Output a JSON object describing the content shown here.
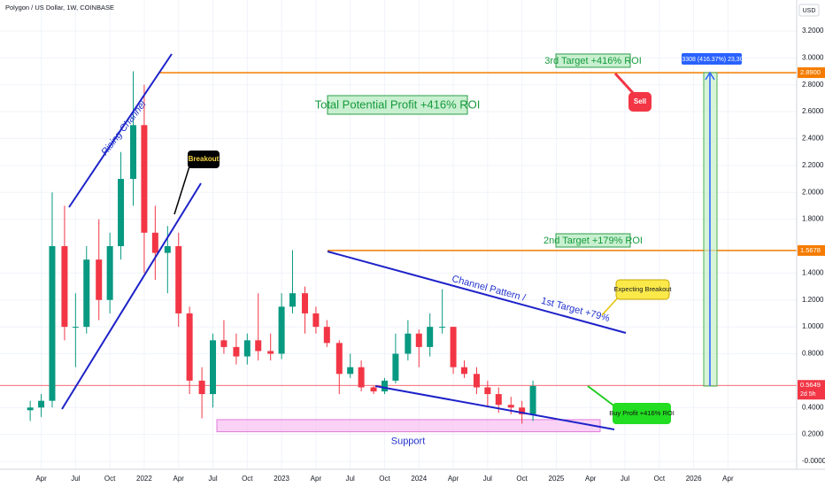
{
  "chart_data": {
    "type": "candlestick",
    "title": "Polygon / US Dollar, 1W, COINBASE",
    "currency": "USD",
    "countdown": "2d 5h",
    "up_color": "#089981",
    "down_color": "#f23645",
    "grid": true,
    "xlim": [
      2020.95,
      2026.75
    ],
    "xticks": [
      {
        "value": 2021.25,
        "label": "Apr"
      },
      {
        "value": 2021.5,
        "label": "Jul"
      },
      {
        "value": 2021.75,
        "label": "Oct"
      },
      {
        "value": 2022,
        "label": "2022"
      },
      {
        "value": 2022.25,
        "label": "Apr"
      },
      {
        "value": 2022.5,
        "label": "Jul"
      },
      {
        "value": 2022.75,
        "label": "Oct"
      },
      {
        "value": 2023,
        "label": "2023"
      },
      {
        "value": 2023.25,
        "label": "Apr"
      },
      {
        "value": 2023.5,
        "label": "Jul"
      },
      {
        "value": 2023.75,
        "label": "Oct"
      },
      {
        "value": 2024,
        "label": "2024"
      },
      {
        "value": 2024.25,
        "label": "Apr"
      },
      {
        "value": 2024.5,
        "label": "Jul"
      },
      {
        "value": 2024.75,
        "label": "Oct"
      },
      {
        "value": 2025,
        "label": "2025"
      },
      {
        "value": 2025.25,
        "label": "Apr"
      },
      {
        "value": 2025.5,
        "label": "Jul"
      },
      {
        "value": 2025.75,
        "label": "Oct"
      },
      {
        "value": 2026,
        "label": "2026"
      },
      {
        "value": 2026.25,
        "label": "Apr"
      }
    ],
    "ylim": [
      -0.1,
      3.3
    ],
    "yticks": [
      {
        "value": 3.2,
        "label": "3.2000"
      },
      {
        "value": 3.0,
        "label": "3.0000"
      },
      {
        "value": 2.8,
        "label": "2.8000"
      },
      {
        "value": 2.6,
        "label": "2.6000"
      },
      {
        "value": 2.4,
        "label": "2.4000"
      },
      {
        "value": 2.2,
        "label": "2.2000"
      },
      {
        "value": 2.0,
        "label": "2.0000"
      },
      {
        "value": 1.8,
        "label": "1.8000"
      },
      {
        "value": 1.4,
        "label": "1.4000"
      },
      {
        "value": 1.2,
        "label": "1.2000"
      },
      {
        "value": 1.0,
        "label": "1.0000"
      },
      {
        "value": 0.8,
        "label": "0.8000"
      },
      {
        "value": 0.4,
        "label": "0.4000"
      },
      {
        "value": 0.2,
        "label": "0.2000"
      },
      {
        "value": 0,
        "label": "-0.0000"
      }
    ],
    "candles": {
      "x": [
        2021.17,
        2021.25,
        2021.33,
        2021.42,
        2021.5,
        2021.58,
        2021.67,
        2021.75,
        2021.83,
        2021.92,
        2022.0,
        2022.08,
        2022.17,
        2022.25,
        2022.33,
        2022.42,
        2022.5,
        2022.58,
        2022.67,
        2022.75,
        2022.83,
        2022.92,
        2023.0,
        2023.08,
        2023.17,
        2023.25,
        2023.33,
        2023.42,
        2023.5,
        2023.58,
        2023.67,
        2023.75,
        2023.83,
        2023.92,
        2024.0,
        2024.08,
        2024.17,
        2024.25,
        2024.33,
        2024.42,
        2024.5,
        2024.58,
        2024.67,
        2024.75,
        2024.83
      ],
      "open": [
        0.38,
        0.4,
        0.45,
        1.6,
        1.0,
        1.0,
        1.5,
        1.2,
        1.6,
        2.1,
        2.5,
        1.7,
        1.55,
        1.6,
        1.1,
        0.6,
        0.5,
        0.9,
        0.85,
        0.78,
        0.9,
        0.82,
        0.8,
        1.15,
        1.25,
        1.1,
        1.0,
        0.88,
        0.65,
        0.7,
        0.55,
        0.52,
        0.6,
        0.8,
        0.95,
        0.85,
        1.0,
        1.0,
        0.7,
        0.65,
        0.55,
        0.5,
        0.42,
        0.4,
        0.35
      ],
      "high": [
        0.45,
        0.5,
        2.0,
        1.9,
        1.25,
        1.6,
        1.8,
        1.7,
        2.3,
        2.9,
        2.8,
        1.9,
        1.75,
        1.7,
        1.15,
        0.7,
        0.95,
        1.05,
        0.95,
        0.95,
        1.25,
        0.95,
        1.25,
        1.57,
        1.3,
        1.15,
        1.05,
        0.9,
        0.8,
        0.75,
        0.56,
        0.62,
        0.95,
        1.05,
        0.98,
        1.1,
        1.28,
        1.0,
        0.75,
        0.7,
        0.6,
        0.55,
        0.48,
        0.45,
        0.6
      ],
      "low": [
        0.3,
        0.33,
        0.4,
        0.9,
        0.7,
        0.95,
        1.05,
        1.1,
        1.5,
        1.9,
        1.4,
        1.35,
        1.25,
        1.0,
        0.5,
        0.32,
        0.4,
        0.8,
        0.72,
        0.72,
        0.75,
        0.75,
        0.76,
        1.1,
        0.95,
        0.95,
        0.85,
        0.5,
        0.62,
        0.52,
        0.5,
        0.5,
        0.58,
        0.75,
        0.7,
        0.78,
        0.95,
        0.65,
        0.62,
        0.5,
        0.4,
        0.36,
        0.35,
        0.28,
        0.3
      ],
      "close": [
        0.4,
        0.45,
        1.6,
        1.0,
        1.0,
        1.5,
        1.2,
        1.6,
        2.1,
        2.5,
        1.7,
        1.55,
        1.6,
        1.1,
        0.6,
        0.5,
        0.9,
        0.85,
        0.78,
        0.9,
        0.82,
        0.8,
        1.15,
        1.25,
        1.1,
        1.0,
        0.88,
        0.65,
        0.7,
        0.55,
        0.52,
        0.6,
        0.8,
        0.95,
        0.85,
        1.0,
        1.0,
        0.7,
        0.65,
        0.55,
        0.5,
        0.42,
        0.4,
        0.35,
        0.56
      ]
    },
    "price_lines": [
      {
        "value": 2.89,
        "label": "2.8900",
        "color": "#f57c00"
      },
      {
        "value": 1.5678,
        "label": "1.5678",
        "color": "#f57c00"
      },
      {
        "value": 0.5649,
        "label": "0.5649",
        "color": "#f23645"
      }
    ],
    "support_zone": {
      "label": "Support",
      "range": [
        0.22,
        0.31
      ]
    },
    "annotations": [
      "Rising Channel",
      "Breakout",
      "Total Potential Profit +416% ROI",
      "3rd Target +416% ROI",
      "Sell",
      "2.3308 (416.37%) 23,308",
      "2nd Target +179% ROI",
      "Channel Pattern  /",
      "1st Target +79%",
      "Expecting Breakout",
      "Buy Profit +416% ROI"
    ]
  }
}
